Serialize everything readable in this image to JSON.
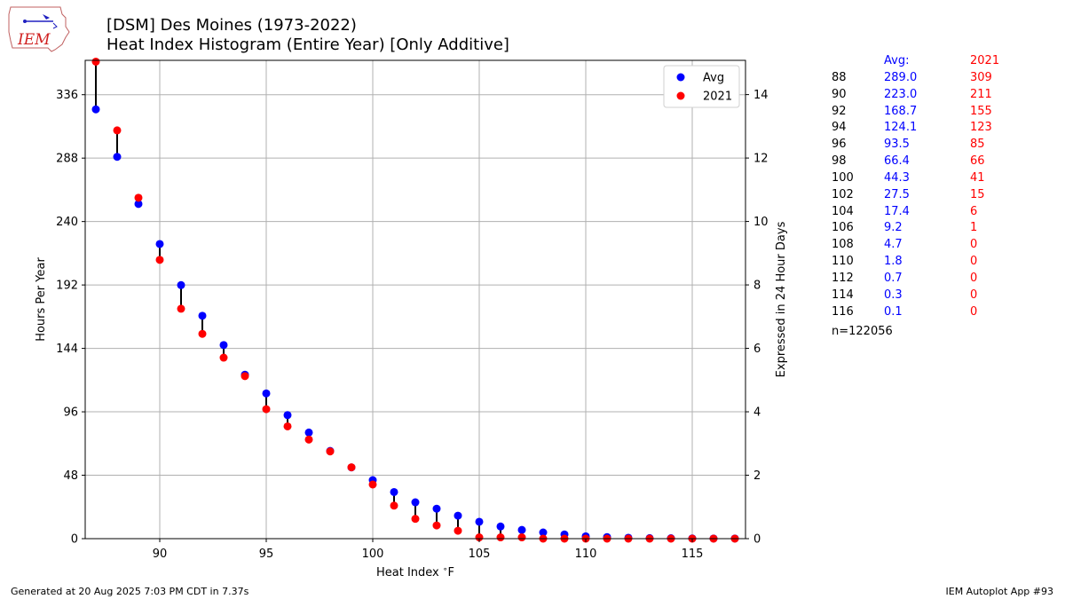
{
  "title": "[DSM] Des Moines (1973-2022)",
  "subtitle": "Heat Index Histogram (Entire Year) [Only Additive]",
  "logo_text": "IEM",
  "colors": {
    "avg": "#0000ff",
    "year": "#ff0000",
    "stem": "#000000",
    "grid": "#b0b0b0"
  },
  "chart_data": {
    "type": "scatter",
    "xlabel": "Heat Index $^\\circ$F",
    "ylabel": "Hours Per Year",
    "y2label": "Expressed in 24 Hour Days",
    "xlim": [
      86.5,
      117.5
    ],
    "ylim": [
      0,
      362
    ],
    "y2lim": [
      0,
      15.08
    ],
    "xticks": [
      90,
      95,
      100,
      105,
      110,
      115
    ],
    "yticks": [
      0,
      48,
      96,
      144,
      192,
      240,
      288,
      336
    ],
    "y2ticks": [
      0,
      2,
      4,
      6,
      8,
      10,
      12,
      14
    ],
    "grid": true,
    "legend_position": "top-right",
    "x": [
      87,
      88,
      89,
      90,
      91,
      92,
      93,
      94,
      95,
      96,
      97,
      98,
      99,
      100,
      101,
      102,
      103,
      104,
      105,
      106,
      107,
      108,
      109,
      110,
      111,
      112,
      113,
      114,
      115,
      116,
      117
    ],
    "series": [
      {
        "name": "Avg",
        "values": [
          324.9,
          289.0,
          253.3,
          223.0,
          191.9,
          168.7,
          146.5,
          124.1,
          109.9,
          93.5,
          80.3,
          66.4,
          53.9,
          44.3,
          35.3,
          27.5,
          22.7,
          17.4,
          12.8,
          9.2,
          6.6,
          4.7,
          3.2,
          1.8,
          1.2,
          0.7,
          0.4,
          0.3,
          0.2,
          0.1,
          0.1
        ]
      },
      {
        "name": "2021",
        "values": [
          361,
          309,
          258,
          211,
          174,
          155,
          137,
          123,
          98,
          85,
          75,
          66,
          54,
          41,
          25,
          15,
          10,
          6,
          1,
          1,
          1,
          0,
          0,
          0,
          0,
          0,
          0,
          0,
          0,
          0,
          0
        ]
      }
    ]
  },
  "table": {
    "header_avg": "Avg:",
    "header_year": "2021",
    "rows": [
      {
        "value": "88",
        "avg": "289.0",
        "year": "309"
      },
      {
        "value": "90",
        "avg": "223.0",
        "year": "211"
      },
      {
        "value": "92",
        "avg": "168.7",
        "year": "155"
      },
      {
        "value": "94",
        "avg": "124.1",
        "year": "123"
      },
      {
        "value": "96",
        "avg": "93.5",
        "year": "85"
      },
      {
        "value": "98",
        "avg": "66.4",
        "year": "66"
      },
      {
        "value": "100",
        "avg": "44.3",
        "year": "41"
      },
      {
        "value": "102",
        "avg": "27.5",
        "year": "15"
      },
      {
        "value": "104",
        "avg": "17.4",
        "year": "6"
      },
      {
        "value": "106",
        "avg": "9.2",
        "year": "1"
      },
      {
        "value": "108",
        "avg": "4.7",
        "year": "0"
      },
      {
        "value": "110",
        "avg": "1.8",
        "year": "0"
      },
      {
        "value": "112",
        "avg": "0.7",
        "year": "0"
      },
      {
        "value": "114",
        "avg": "0.3",
        "year": "0"
      },
      {
        "value": "116",
        "avg": "0.1",
        "year": "0"
      }
    ],
    "n_text": "n=122056"
  },
  "footer_left": "Generated at 20 Aug 2025 7:03 PM CDT in 7.37s",
  "footer_right": "IEM Autoplot App #93"
}
